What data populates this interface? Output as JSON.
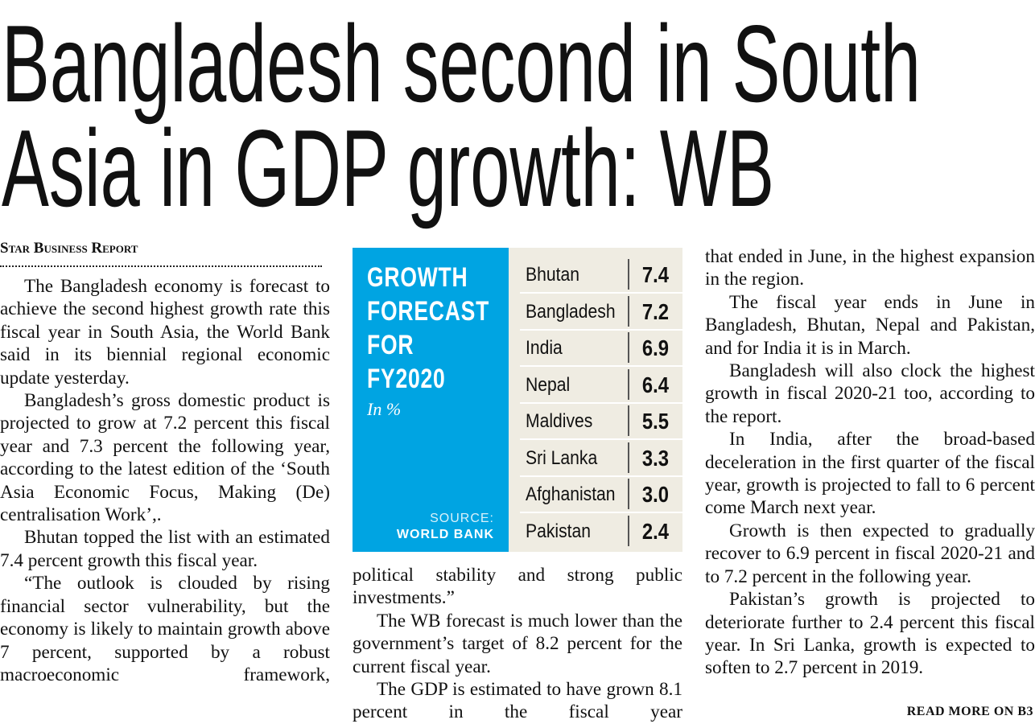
{
  "header": {
    "headline_lines": [
      "Bangladesh second in South",
      "Asia in GDP growth: WB"
    ],
    "byline": "Star Business Report"
  },
  "columns": [
    {
      "paragraphs": [
        "The Bangladesh economy is forecast to achieve the second highest growth rate this fiscal year in South Asia, the World Bank said in its biennial regional economic update yesterday.",
        "Bangladesh’s gross domestic product is projected to grow at 7.2 percent this fiscal year and 7.3 percent the following year, according to the latest edition of the ‘South Asia Economic Focus, Making (De) centralisation Work’,.",
        "Bhutan topped the list with an estimated 7.4 percent growth this fiscal year.",
        "“The outlook is clouded by rising financial sector vulnerability, but the economy is likely to maintain growth above 7 percent, supported by a robust macroeconomic framework,"
      ]
    },
    {
      "paragraphs": [
        "political stability and strong public investments.”",
        "The WB forecast is much lower than the government’s target of 8.2 percent for the current fiscal year.",
        "The GDP is estimated to have grown 8.1 percent in the fiscal year"
      ]
    },
    {
      "paragraphs": [
        "that ended in June, in the highest expansion in the region.",
        "The fiscal year ends in June in Bangladesh, Bhutan, Nepal and Pakistan, and for India it is in March.",
        "Bangladesh will also clock the highest growth in fiscal 2020-21 too, according to the report.",
        "In India, after the broad-based deceleration in the first quarter of the fiscal year, growth is projected to fall to 6 percent come March next year.",
        "Growth is then expected to gradually recover to 6.9 percent in fiscal 2020-21 and to 7.2 percent in the following year.",
        "Pakistan’s growth is projected to deteriorate further to 2.4 percent this fiscal year. In Sri Lanka, growth is expected to soften to 2.7 percent in 2019."
      ]
    }
  ],
  "table": {
    "title": "GROWTH FORECAST FOR FY2020",
    "unit": "In %",
    "source_label": "SOURCE:",
    "source": "WORLD BANK",
    "rows": [
      [
        "Bhutan",
        "7.4"
      ],
      [
        "Bangladesh",
        "7.2"
      ],
      [
        "India",
        "6.9"
      ],
      [
        "Nepal",
        "6.4"
      ],
      [
        "Maldives",
        "5.5"
      ],
      [
        "Sri Lanka",
        "3.3"
      ],
      [
        "Afghanistan",
        "3.0"
      ],
      [
        "Pakistan",
        "2.4"
      ]
    ]
  },
  "footer": {
    "read_more": "READ MORE ON B3"
  }
}
